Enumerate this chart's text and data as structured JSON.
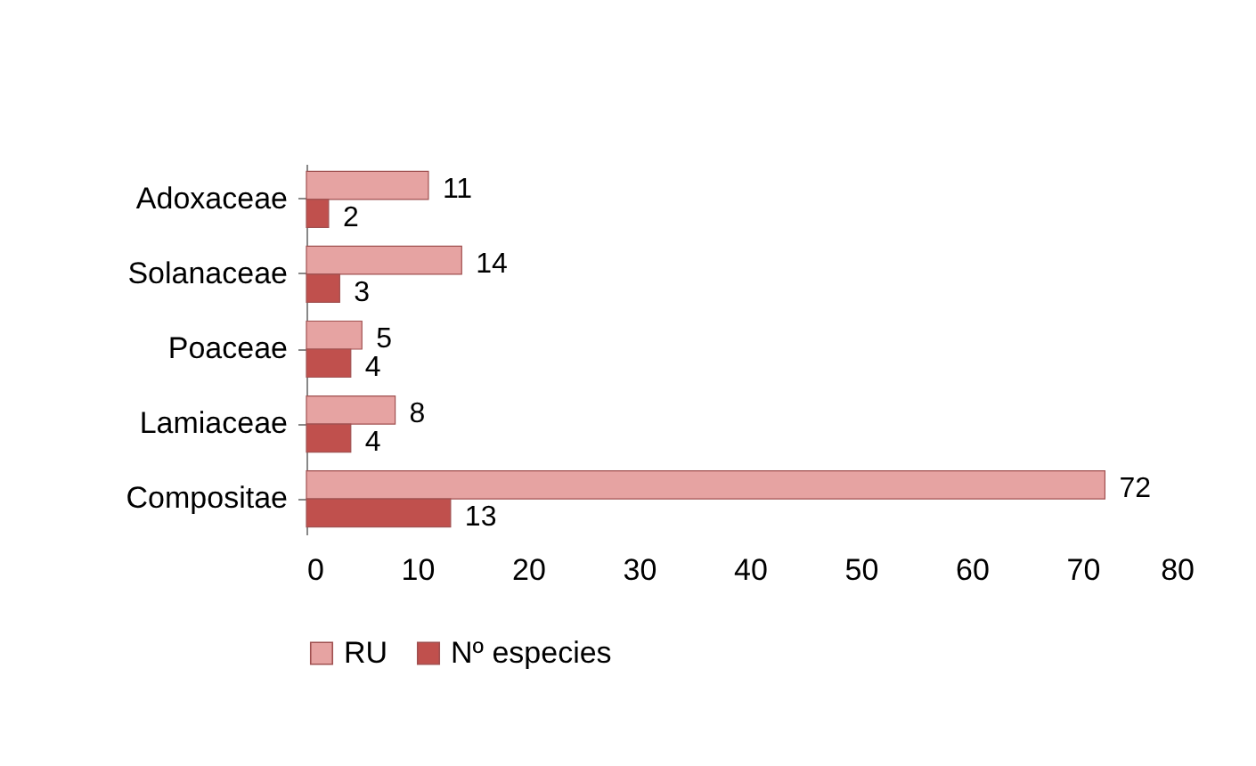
{
  "chart_data": {
    "type": "bar",
    "orientation": "horizontal",
    "categories": [
      "Adoxaceae",
      "Solanaceae",
      "Poaceae",
      "Lamiaceae",
      "Compositae"
    ],
    "series": [
      {
        "name": "RU",
        "color": "#e6a3a2",
        "values": [
          11,
          14,
          5,
          8,
          72
        ]
      },
      {
        "name": "Nº especies",
        "color": "#c0504d",
        "values": [
          2,
          3,
          4,
          4,
          13
        ]
      }
    ],
    "xlim": [
      0,
      80
    ],
    "xticks": [
      0,
      10,
      20,
      30,
      40,
      50,
      60,
      70,
      80
    ],
    "grid": false,
    "legend": "bottom",
    "data_labels": true
  }
}
